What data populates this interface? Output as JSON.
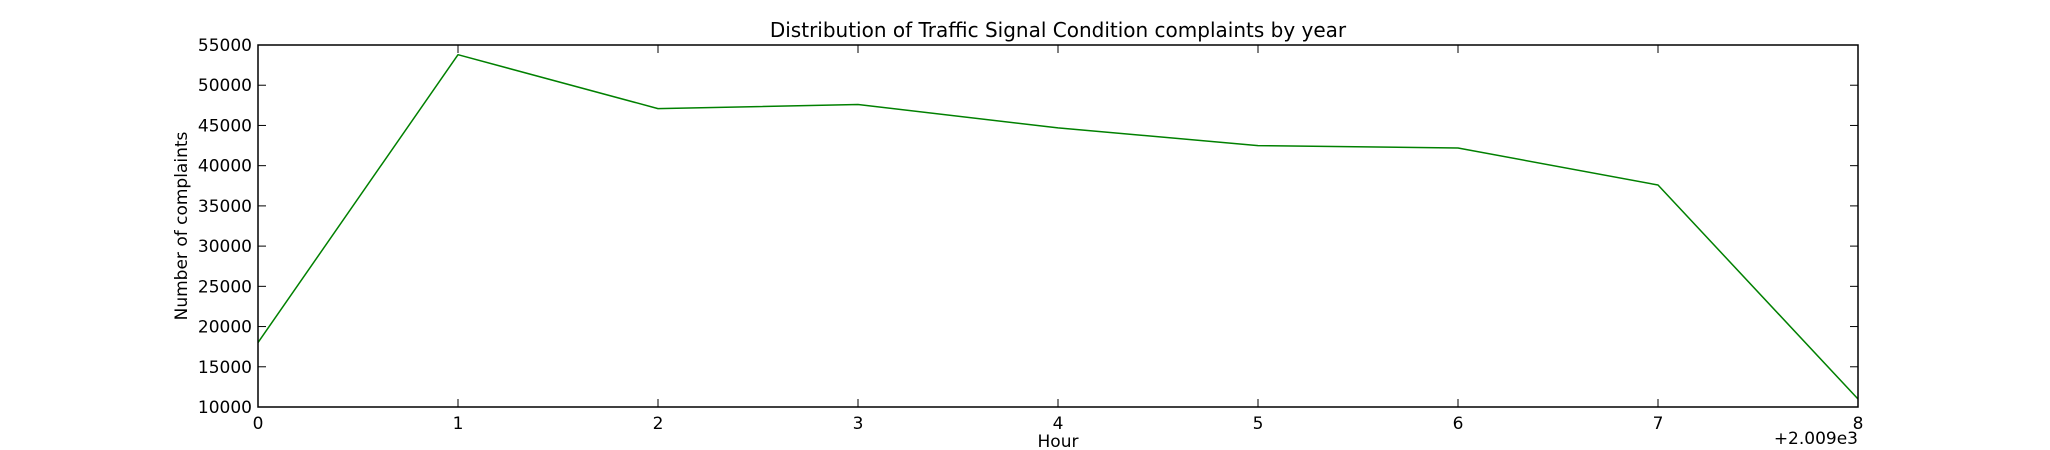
{
  "chart_data": {
    "type": "line",
    "title": "Distribution of  Traffic Signal Condition complaints by year",
    "xlabel": "Hour",
    "ylabel": "Number of complaints",
    "x_offset_label": "+2.009e3",
    "x": [
      0,
      1,
      2,
      3,
      4,
      5,
      6,
      7,
      8
    ],
    "series": [
      {
        "color": "#008000",
        "values": [
          18000,
          53800,
          47100,
          47600,
          44700,
          42500,
          42200,
          37600,
          11000
        ]
      }
    ],
    "xlim": [
      0,
      8
    ],
    "ylim": [
      10000,
      55000
    ],
    "x_ticks": [
      0,
      1,
      2,
      3,
      4,
      5,
      6,
      7,
      8
    ],
    "x_tick_labels": [
      "0",
      "1",
      "2",
      "3",
      "4",
      "5",
      "6",
      "7",
      "8"
    ],
    "y_ticks": [
      10000,
      15000,
      20000,
      25000,
      30000,
      35000,
      40000,
      45000,
      50000,
      55000
    ],
    "y_tick_labels": [
      "10000",
      "15000",
      "20000",
      "25000",
      "30000",
      "35000",
      "40000",
      "45000",
      "50000",
      "55000"
    ],
    "grid": false,
    "legend": "none"
  }
}
